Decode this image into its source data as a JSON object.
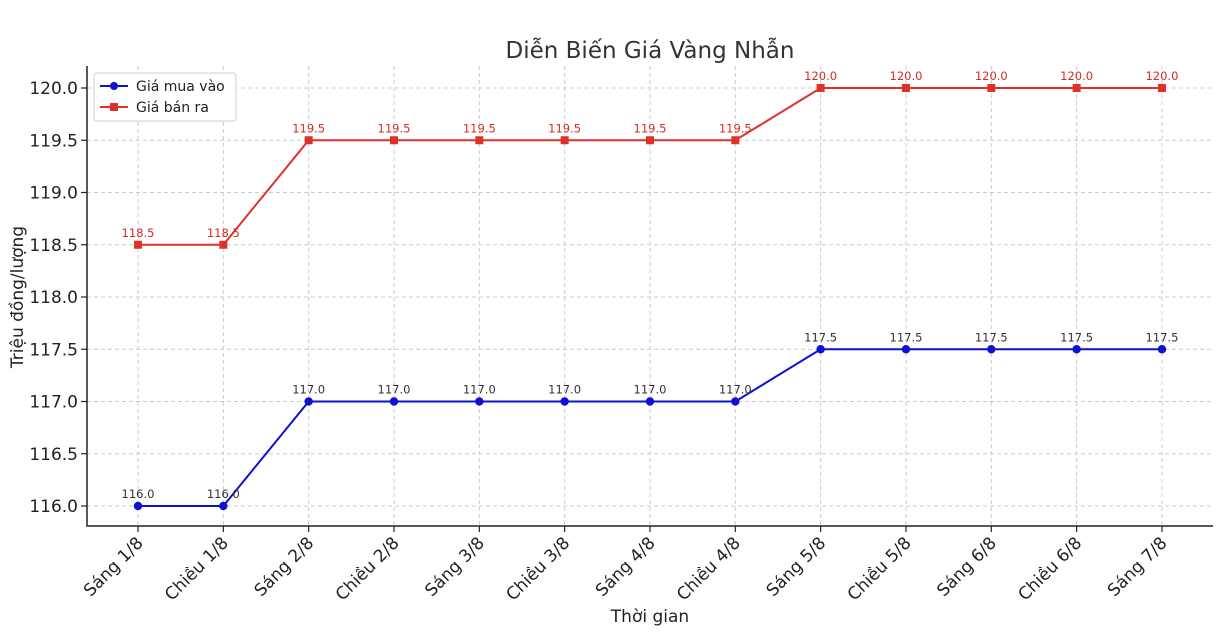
{
  "chart_data": {
    "type": "line",
    "title": "Diễn Biến Giá Vàng Nhẫn",
    "xlabel": "Thời gian",
    "ylabel": "Triệu đồng/lượng",
    "categories": [
      "Sáng 1/8",
      "Chiều 1/8",
      "Sáng 2/8",
      "Chiều 2/8",
      "Sáng 3/8",
      "Chiều 3/8",
      "Sáng 4/8",
      "Chiều 4/8",
      "Sáng 5/8",
      "Chiều 5/8",
      "Sáng 6/8",
      "Chiều 6/8",
      "Sáng 7/8"
    ],
    "ylim": [
      116.0,
      120.0
    ],
    "yticks": [
      "116.0",
      "116.5",
      "117.0",
      "117.5",
      "118.0",
      "118.5",
      "119.0",
      "119.5",
      "120.0"
    ],
    "grid": true,
    "legend_position": "top-left",
    "series": [
      {
        "name": "Giá mua vào",
        "color": "#1010d0",
        "label_color": "#333333",
        "marker": "circle",
        "values": [
          116.0,
          116.0,
          117.0,
          117.0,
          117.0,
          117.0,
          117.0,
          117.0,
          117.5,
          117.5,
          117.5,
          117.5,
          117.5
        ],
        "labels": [
          "116.0",
          "116.0",
          "117.0",
          "117.0",
          "117.0",
          "117.0",
          "117.0",
          "117.0",
          "117.5",
          "117.5",
          "117.5",
          "117.5",
          "117.5"
        ]
      },
      {
        "name": "Giá bán ra",
        "color": "#e0302a",
        "label_color": "#d42a20",
        "marker": "square",
        "values": [
          118.5,
          118.5,
          119.5,
          119.5,
          119.5,
          119.5,
          119.5,
          119.5,
          120.0,
          120.0,
          120.0,
          120.0,
          120.0
        ],
        "labels": [
          "118.5",
          "118.5",
          "119.5",
          "119.5",
          "119.5",
          "119.5",
          "119.5",
          "119.5",
          "120.0",
          "120.0",
          "120.0",
          "120.0",
          "120.0"
        ]
      }
    ]
  }
}
